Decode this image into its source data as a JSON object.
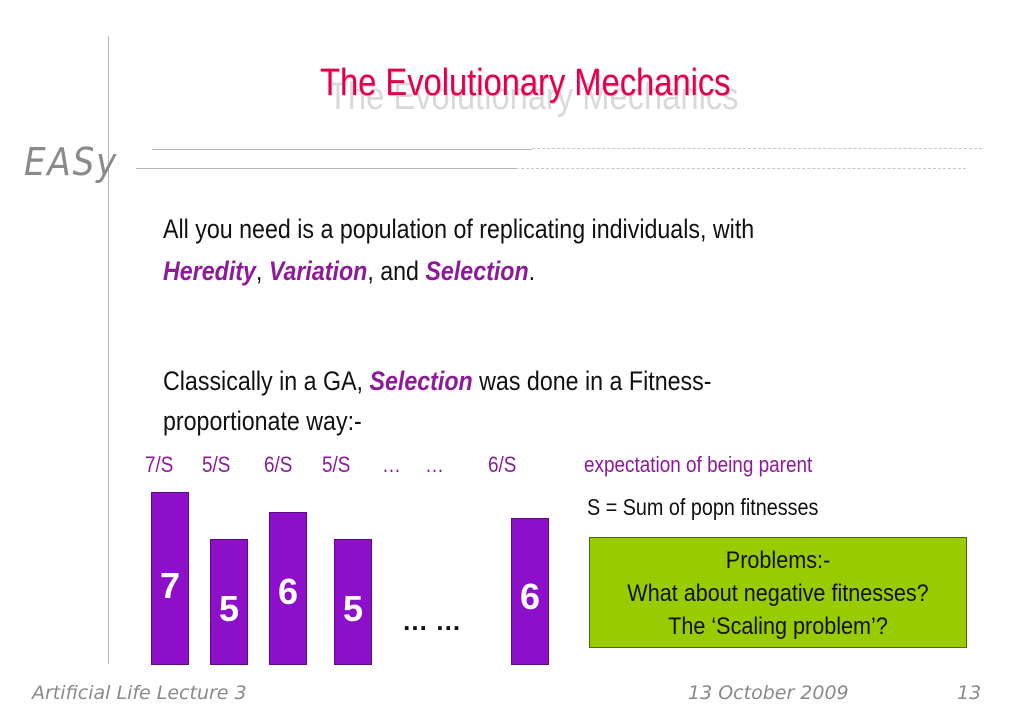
{
  "slide": {
    "title": "The Evolutionary Mechanics",
    "logo": "EASy",
    "paragraph1": {
      "line1": "All you need is a population of replicating individuals, with",
      "heredity": "Heredity",
      "comma1": ", ",
      "variation": "Variation",
      "and": ", and ",
      "selection": "Selection",
      "period": "."
    },
    "paragraph2": {
      "prefix": "Classically in a GA, ",
      "selection": "Selection",
      "suffix": " was done in a Fitness-",
      "line2": "proportionate way:-"
    },
    "expectation_labels": [
      "7/S",
      "5/S",
      "6/S",
      "5/S",
      "…",
      "…",
      "6/S"
    ],
    "expectation_caption": "expectation of being parent",
    "sum_caption": "S = Sum of popn fitnesses",
    "bars": [
      {
        "label": "7",
        "value": 7
      },
      {
        "label": "5",
        "value": 5
      },
      {
        "label": "6",
        "value": 6
      },
      {
        "label": "5",
        "value": 5
      },
      {
        "label": "6",
        "value": 6
      }
    ],
    "bar_color": "#8e0fc9",
    "ellipsis": "…  …",
    "problems": {
      "title": "Problems:-",
      "line1": "What about negative fitnesses?",
      "line2": "The ‘Scaling problem’?"
    },
    "problems_color": "#99cc00",
    "title_color": "#e0004f",
    "emphasis_color": "#8d1a9a"
  },
  "footer": {
    "lecture": "Artificial Life Lecture 3",
    "date": "13 October 2009",
    "page": "13"
  }
}
